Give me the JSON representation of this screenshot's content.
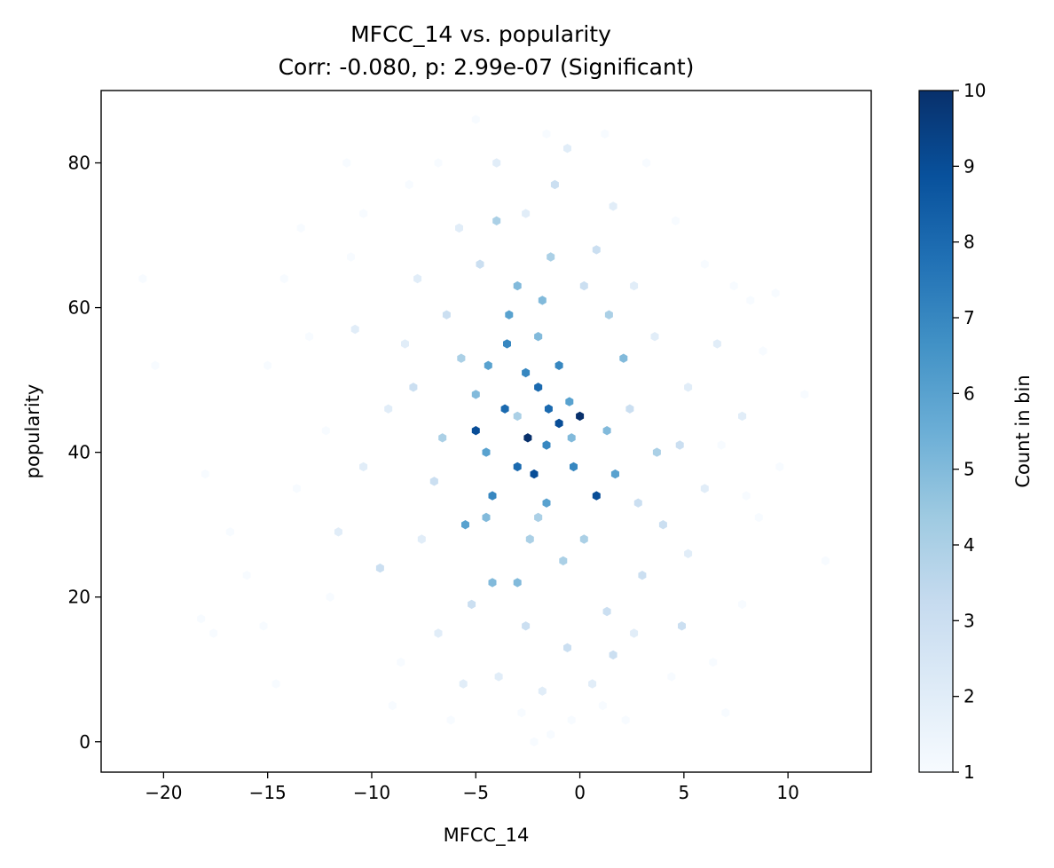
{
  "chart_data": {
    "type": "heatmap",
    "subtype": "hexbin",
    "title": "MFCC_14 vs. popularity",
    "subtitle": "Corr: -0.080, p: 2.99e-07 (Significant)",
    "xlabel": "MFCC_14",
    "ylabel": "popularity",
    "xlim": [
      -23,
      14
    ],
    "ylim": [
      -4.2,
      90
    ],
    "x_ticks": [
      -20,
      -15,
      -10,
      -5,
      0,
      5,
      10
    ],
    "x_tick_labels": [
      "−20",
      "−15",
      "−10",
      "−5",
      "0",
      "5",
      "10"
    ],
    "y_ticks": [
      0,
      20,
      40,
      60,
      80
    ],
    "y_tick_labels": [
      "0",
      "20",
      "40",
      "60",
      "80"
    ],
    "grid": false,
    "colormap": "Blues",
    "colorbar": {
      "label": "Count in bin",
      "range": [
        1,
        10
      ],
      "ticks": [
        1,
        2,
        3,
        4,
        5,
        6,
        7,
        8,
        9,
        10
      ],
      "tick_labels": [
        "1",
        "2",
        "3",
        "4",
        "5",
        "6",
        "7",
        "8",
        "9",
        "10"
      ]
    },
    "correlation": -0.08,
    "p_value": 2.99e-07,
    "significance": "Significant",
    "hex_bins": [
      {
        "x": -2.5,
        "y": 42,
        "count": 10
      },
      {
        "x": 0.0,
        "y": 45,
        "count": 10
      },
      {
        "x": -2.2,
        "y": 37,
        "count": 9
      },
      {
        "x": -5.0,
        "y": 43,
        "count": 9
      },
      {
        "x": 0.8,
        "y": 34,
        "count": 9
      },
      {
        "x": -1.0,
        "y": 44,
        "count": 9
      },
      {
        "x": -2.0,
        "y": 49,
        "count": 8
      },
      {
        "x": -3.6,
        "y": 46,
        "count": 8
      },
      {
        "x": -1.5,
        "y": 46,
        "count": 8
      },
      {
        "x": -3.0,
        "y": 38,
        "count": 8
      },
      {
        "x": -2.6,
        "y": 51,
        "count": 7
      },
      {
        "x": -3.5,
        "y": 55,
        "count": 7
      },
      {
        "x": -1.0,
        "y": 52,
        "count": 7
      },
      {
        "x": -1.6,
        "y": 41,
        "count": 7
      },
      {
        "x": -4.2,
        "y": 34,
        "count": 7
      },
      {
        "x": -0.3,
        "y": 38,
        "count": 7
      },
      {
        "x": -3.4,
        "y": 59,
        "count": 6
      },
      {
        "x": -4.4,
        "y": 52,
        "count": 6
      },
      {
        "x": -0.5,
        "y": 47,
        "count": 6
      },
      {
        "x": 1.7,
        "y": 37,
        "count": 6
      },
      {
        "x": -4.5,
        "y": 40,
        "count": 6
      },
      {
        "x": -1.6,
        "y": 33,
        "count": 6
      },
      {
        "x": -5.5,
        "y": 30,
        "count": 6
      },
      {
        "x": -4.5,
        "y": 31,
        "count": 5
      },
      {
        "x": -2.0,
        "y": 56,
        "count": 5
      },
      {
        "x": 1.3,
        "y": 43,
        "count": 5
      },
      {
        "x": -3.0,
        "y": 63,
        "count": 5
      },
      {
        "x": -4.2,
        "y": 22,
        "count": 5
      },
      {
        "x": -3.0,
        "y": 22,
        "count": 5
      },
      {
        "x": -1.8,
        "y": 61,
        "count": 5
      },
      {
        "x": -5.0,
        "y": 48,
        "count": 5
      },
      {
        "x": -0.4,
        "y": 42,
        "count": 5
      },
      {
        "x": 2.1,
        "y": 53,
        "count": 5
      },
      {
        "x": -1.4,
        "y": 67,
        "count": 4
      },
      {
        "x": -3.0,
        "y": 45,
        "count": 4
      },
      {
        "x": -5.7,
        "y": 53,
        "count": 4
      },
      {
        "x": -6.6,
        "y": 42,
        "count": 4
      },
      {
        "x": -2.4,
        "y": 28,
        "count": 4
      },
      {
        "x": 0.2,
        "y": 28,
        "count": 4
      },
      {
        "x": 1.4,
        "y": 59,
        "count": 4
      },
      {
        "x": -4.0,
        "y": 72,
        "count": 4
      },
      {
        "x": -0.8,
        "y": 25,
        "count": 4
      },
      {
        "x": 3.7,
        "y": 40,
        "count": 4
      },
      {
        "x": -2.0,
        "y": 31,
        "count": 4
      },
      {
        "x": -2.6,
        "y": 16,
        "count": 3
      },
      {
        "x": -5.2,
        "y": 19,
        "count": 3
      },
      {
        "x": -0.6,
        "y": 13,
        "count": 3
      },
      {
        "x": 1.3,
        "y": 18,
        "count": 3
      },
      {
        "x": 3.0,
        "y": 23,
        "count": 3
      },
      {
        "x": -7.0,
        "y": 36,
        "count": 3
      },
      {
        "x": -8.0,
        "y": 49,
        "count": 3
      },
      {
        "x": -6.4,
        "y": 59,
        "count": 3
      },
      {
        "x": -4.8,
        "y": 66,
        "count": 3
      },
      {
        "x": 0.2,
        "y": 63,
        "count": 3
      },
      {
        "x": 0.8,
        "y": 68,
        "count": 3
      },
      {
        "x": 2.4,
        "y": 46,
        "count": 3
      },
      {
        "x": 2.8,
        "y": 33,
        "count": 3
      },
      {
        "x": 4.0,
        "y": 30,
        "count": 3
      },
      {
        "x": 4.8,
        "y": 41,
        "count": 3
      },
      {
        "x": -1.2,
        "y": 77,
        "count": 3
      },
      {
        "x": -9.6,
        "y": 24,
        "count": 3
      },
      {
        "x": 4.9,
        "y": 16,
        "count": 3
      },
      {
        "x": 1.6,
        "y": 12,
        "count": 3
      },
      {
        "x": -3.9,
        "y": 9,
        "count": 2
      },
      {
        "x": -1.8,
        "y": 7,
        "count": 2
      },
      {
        "x": 0.6,
        "y": 8,
        "count": 2
      },
      {
        "x": -5.6,
        "y": 8,
        "count": 2
      },
      {
        "x": -7.6,
        "y": 28,
        "count": 2
      },
      {
        "x": -9.2,
        "y": 46,
        "count": 2
      },
      {
        "x": -8.4,
        "y": 55,
        "count": 2
      },
      {
        "x": -7.8,
        "y": 64,
        "count": 2
      },
      {
        "x": -5.8,
        "y": 71,
        "count": 2
      },
      {
        "x": -2.6,
        "y": 73,
        "count": 2
      },
      {
        "x": 1.6,
        "y": 74,
        "count": 2
      },
      {
        "x": 2.6,
        "y": 63,
        "count": 2
      },
      {
        "x": 3.6,
        "y": 56,
        "count": 2
      },
      {
        "x": 5.2,
        "y": 49,
        "count": 2
      },
      {
        "x": 6.0,
        "y": 35,
        "count": 2
      },
      {
        "x": 5.2,
        "y": 26,
        "count": 2
      },
      {
        "x": 2.6,
        "y": 15,
        "count": 2
      },
      {
        "x": -4.0,
        "y": 80,
        "count": 2
      },
      {
        "x": -10.4,
        "y": 38,
        "count": 2
      },
      {
        "x": -10.8,
        "y": 57,
        "count": 2
      },
      {
        "x": 7.8,
        "y": 45,
        "count": 2
      },
      {
        "x": -11.6,
        "y": 29,
        "count": 2
      },
      {
        "x": 6.6,
        "y": 55,
        "count": 2
      },
      {
        "x": -0.6,
        "y": 82,
        "count": 2
      },
      {
        "x": -6.8,
        "y": 15,
        "count": 2
      },
      {
        "x": -2.8,
        "y": 4,
        "count": 1
      },
      {
        "x": -1.4,
        "y": 1,
        "count": 1
      },
      {
        "x": -2.2,
        "y": 0,
        "count": 1
      },
      {
        "x": -0.4,
        "y": 3,
        "count": 1
      },
      {
        "x": 1.1,
        "y": 5,
        "count": 1
      },
      {
        "x": -9.0,
        "y": 5,
        "count": 1
      },
      {
        "x": -14.6,
        "y": 8,
        "count": 1
      },
      {
        "x": -15.2,
        "y": 16,
        "count": 1
      },
      {
        "x": -18.2,
        "y": 17,
        "count": 1
      },
      {
        "x": -17.6,
        "y": 15,
        "count": 1
      },
      {
        "x": -16.0,
        "y": 23,
        "count": 1
      },
      {
        "x": -18.0,
        "y": 37,
        "count": 1
      },
      {
        "x": -20.4,
        "y": 52,
        "count": 1
      },
      {
        "x": -21.0,
        "y": 64,
        "count": 1
      },
      {
        "x": -15.0,
        "y": 52,
        "count": 1
      },
      {
        "x": -14.2,
        "y": 64,
        "count": 1
      },
      {
        "x": -13.0,
        "y": 56,
        "count": 1
      },
      {
        "x": -12.2,
        "y": 43,
        "count": 1
      },
      {
        "x": -13.6,
        "y": 35,
        "count": 1
      },
      {
        "x": -10.4,
        "y": 73,
        "count": 1
      },
      {
        "x": -11.2,
        "y": 80,
        "count": 1
      },
      {
        "x": -8.2,
        "y": 77,
        "count": 1
      },
      {
        "x": -6.8,
        "y": 80,
        "count": 1
      },
      {
        "x": -5.0,
        "y": 86,
        "count": 1
      },
      {
        "x": -1.6,
        "y": 84,
        "count": 1
      },
      {
        "x": 1.2,
        "y": 84,
        "count": 1
      },
      {
        "x": 3.2,
        "y": 80,
        "count": 1
      },
      {
        "x": 4.6,
        "y": 72,
        "count": 1
      },
      {
        "x": 6.0,
        "y": 66,
        "count": 1
      },
      {
        "x": 7.4,
        "y": 63,
        "count": 1
      },
      {
        "x": 8.2,
        "y": 61,
        "count": 1
      },
      {
        "x": 9.4,
        "y": 62,
        "count": 1
      },
      {
        "x": 8.8,
        "y": 54,
        "count": 1
      },
      {
        "x": 10.8,
        "y": 48,
        "count": 1
      },
      {
        "x": 9.6,
        "y": 38,
        "count": 1
      },
      {
        "x": 8.6,
        "y": 31,
        "count": 1
      },
      {
        "x": 11.8,
        "y": 25,
        "count": 1
      },
      {
        "x": 7.8,
        "y": 19,
        "count": 1
      },
      {
        "x": 7.0,
        "y": 4,
        "count": 1
      },
      {
        "x": 6.4,
        "y": 11,
        "count": 1
      },
      {
        "x": 4.4,
        "y": 9,
        "count": 1
      },
      {
        "x": 2.2,
        "y": 3,
        "count": 1
      },
      {
        "x": -6.2,
        "y": 3,
        "count": 1
      },
      {
        "x": -8.6,
        "y": 11,
        "count": 1
      },
      {
        "x": -12.0,
        "y": 20,
        "count": 1
      },
      {
        "x": -16.8,
        "y": 29,
        "count": 1
      },
      {
        "x": -11.0,
        "y": 67,
        "count": 1
      },
      {
        "x": -13.4,
        "y": 71,
        "count": 1
      },
      {
        "x": 6.8,
        "y": 41,
        "count": 1
      },
      {
        "x": 8.0,
        "y": 34,
        "count": 1
      }
    ]
  }
}
